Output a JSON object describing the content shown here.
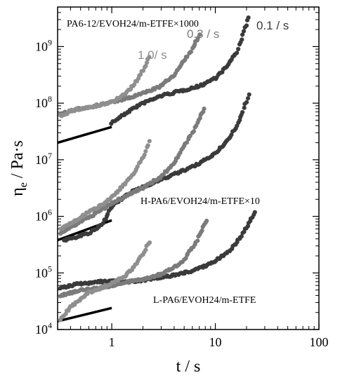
{
  "chart_data": {
    "type": "scatter",
    "title": "",
    "xlabel": "t / s",
    "ylabel_main": "η",
    "ylabel_sub": "e",
    "ylabel_rest": " / Pa·s",
    "xscale": "log",
    "yscale": "log",
    "xlim": [
      0.3,
      100
    ],
    "ylim": [
      10000,
      5000000000
    ],
    "x_ticks": [
      {
        "value": 1,
        "label": "1"
      },
      {
        "value": 10,
        "label": "10"
      },
      {
        "value": 100,
        "label": "100"
      }
    ],
    "y_ticks": [
      {
        "value": 10000,
        "base": "10",
        "exp": "4"
      },
      {
        "value": 100000,
        "base": "10",
        "exp": "5"
      },
      {
        "value": 1000000,
        "base": "10",
        "exp": "6"
      },
      {
        "value": 10000000,
        "base": "10",
        "exp": "7"
      },
      {
        "value": 100000000,
        "base": "10",
        "exp": "8"
      },
      {
        "value": 1000000000,
        "base": "10",
        "exp": "9"
      }
    ],
    "colors": {
      "rate_0.1": "#3a3a3a",
      "rate_0.3": "#7b7b7b",
      "rate_1.0": "#8f8f8f",
      "lve_line": "#000000"
    },
    "groups": [
      {
        "label": "PA6-12/EVOH24/m-ETFE×1000",
        "lve_line": {
          "x": [
            0.3,
            1.0
          ],
          "y": [
            20000000,
            38000000
          ]
        },
        "series": [
          {
            "rate_label": "1.0/ s",
            "color_key": "rate_1.0",
            "x_end": 2.3,
            "points": [
              [
                0.32,
                60000000
              ],
              [
                0.4,
                72000000
              ],
              [
                0.5,
                80000000
              ],
              [
                0.6,
                84000000
              ],
              [
                0.8,
                92000000
              ],
              [
                1.0,
                105000000
              ],
              [
                1.3,
                140000000
              ],
              [
                1.6,
                200000000
              ],
              [
                2.0,
                380000000
              ],
              [
                2.3,
                650000000
              ]
            ]
          },
          {
            "rate_label": "0.3 / s",
            "color_key": "rate_0.3",
            "x_end": 7.0,
            "points": [
              [
                0.32,
                65000000
              ],
              [
                0.5,
                80000000
              ],
              [
                0.8,
                95000000
              ],
              [
                1.0,
                105000000
              ],
              [
                1.5,
                125000000
              ],
              [
                2.0,
                150000000
              ],
              [
                3.0,
                200000000
              ],
              [
                4.0,
                320000000
              ],
              [
                5.0,
                550000000
              ],
              [
                6.0,
                900000000
              ],
              [
                7.0,
                1600000000
              ]
            ]
          },
          {
            "rate_label": "0.1 / s",
            "color_key": "rate_0.1",
            "x_end": 21.0,
            "points": [
              [
                1.0,
                45000000
              ],
              [
                1.5,
                75000000
              ],
              [
                2.0,
                100000000
              ],
              [
                3.0,
                135000000
              ],
              [
                5.0,
                170000000
              ],
              [
                7.0,
                200000000
              ],
              [
                10.0,
                280000000
              ],
              [
                13.0,
                450000000
              ],
              [
                16.0,
                800000000
              ],
              [
                19.0,
                1800000000
              ],
              [
                21.0,
                3300000000
              ]
            ]
          }
        ]
      },
      {
        "label": "H-PA6/EVOH24/m-ETFE×10",
        "lve_line": {
          "x": [
            0.3,
            1.0
          ],
          "y": [
            380000,
            850000
          ]
        },
        "series": [
          {
            "color_key": "rate_1.0",
            "x_end": 2.3,
            "points": [
              [
                0.32,
                600000
              ],
              [
                0.4,
                750000
              ],
              [
                0.5,
                950000
              ],
              [
                0.6,
                1200000
              ],
              [
                0.8,
                1600000
              ],
              [
                1.0,
                2200000
              ],
              [
                1.3,
                3500000
              ],
              [
                1.6,
                5500000
              ],
              [
                2.0,
                11000000
              ],
              [
                2.3,
                21000000
              ]
            ]
          },
          {
            "color_key": "rate_0.3",
            "x_end": 7.8,
            "points": [
              [
                0.32,
                500000
              ],
              [
                0.5,
                800000
              ],
              [
                0.8,
                1300000
              ],
              [
                1.0,
                1700000
              ],
              [
                1.5,
                2500000
              ],
              [
                2.0,
                3200000
              ],
              [
                3.0,
                5000000
              ],
              [
                4.0,
                9000000
              ],
              [
                5.0,
                17000000
              ],
              [
                6.5,
                40000000
              ],
              [
                7.8,
                80000000
              ]
            ]
          },
          {
            "color_key": "rate_0.1",
            "x_end": 21.0,
            "points": [
              [
                0.35,
                380000
              ],
              [
                0.6,
                500000
              ],
              [
                0.8,
                700000
              ],
              [
                1.0,
                1500000
              ],
              [
                1.5,
                2600000
              ],
              [
                2.0,
                3300000
              ],
              [
                3.0,
                4500000
              ],
              [
                5.0,
                6500000
              ],
              [
                7.0,
                8500000
              ],
              [
                10.0,
                13000000
              ],
              [
                14.0,
                25000000
              ],
              [
                18.0,
                60000000
              ],
              [
                21.0,
                145000000
              ]
            ]
          }
        ]
      },
      {
        "label": "L-PA6/EVOH24/m-ETFE",
        "lve_line": {
          "x": [
            0.3,
            1.0
          ],
          "y": [
            14000,
            24000
          ]
        },
        "series": [
          {
            "color_key": "rate_1.0",
            "x_end": 2.3,
            "points": [
              [
                0.32,
                15000
              ],
              [
                0.4,
                25000
              ],
              [
                0.5,
                35000
              ],
              [
                0.6,
                45000
              ],
              [
                0.8,
                55000
              ],
              [
                1.0,
                65000
              ],
              [
                1.3,
                85000
              ],
              [
                1.6,
                120000
              ],
              [
                2.0,
                220000
              ],
              [
                2.3,
                350000
              ]
            ]
          },
          {
            "color_key": "rate_0.3",
            "x_end": 8.3,
            "points": [
              [
                0.32,
                40000
              ],
              [
                0.5,
                50000
              ],
              [
                0.8,
                55000
              ],
              [
                1.0,
                60000
              ],
              [
                1.5,
                70000
              ],
              [
                2.0,
                78000
              ],
              [
                3.0,
                95000
              ],
              [
                4.0,
                125000
              ],
              [
                5.0,
                170000
              ],
              [
                6.5,
                350000
              ],
              [
                8.3,
                850000
              ]
            ]
          },
          {
            "color_key": "rate_0.1",
            "x_end": 24.0,
            "points": [
              [
                0.32,
                55000
              ],
              [
                0.5,
                65000
              ],
              [
                0.8,
                70000
              ],
              [
                1.0,
                72000
              ],
              [
                1.5,
                70000
              ],
              [
                2.0,
                75000
              ],
              [
                3.0,
                82000
              ],
              [
                5.0,
                100000
              ],
              [
                7.0,
                120000
              ],
              [
                10.0,
                160000
              ],
              [
                14.0,
                260000
              ],
              [
                18.0,
                450000
              ],
              [
                21.0,
                750000
              ],
              [
                24.0,
                1150000
              ]
            ]
          }
        ]
      }
    ]
  }
}
